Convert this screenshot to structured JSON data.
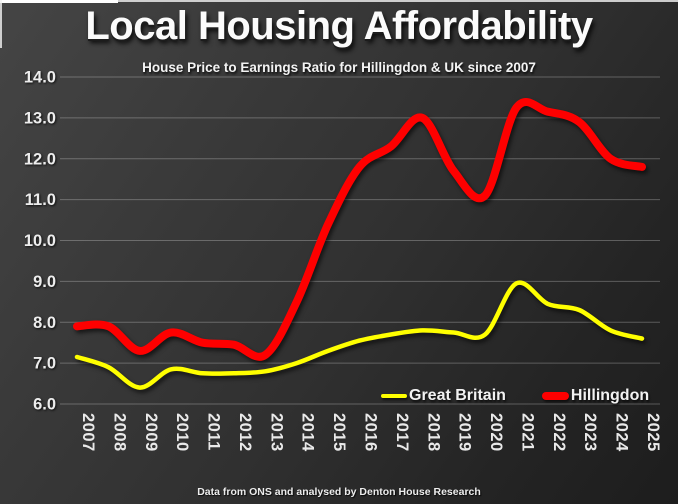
{
  "title": "Local Housing Affordability",
  "subtitle": "House Price to Earnings Ratio for Hillingdon & UK since 2007",
  "footer": "Data from ONS and analysed by Denton House Research",
  "legend": [
    {
      "label": "Great Britain",
      "color": "#ffff00"
    },
    {
      "label": "Hillingdon",
      "color": "#fe0000"
    }
  ],
  "chart_data": {
    "type": "line",
    "title": "Local Housing Affordability",
    "subtitle": "House Price to Earnings Ratio for Hillingdon & UK since 2007",
    "categories": [
      "2007",
      "2008",
      "2009",
      "2010",
      "2011",
      "2012",
      "2013",
      "2014",
      "2015",
      "2016",
      "2017",
      "2018",
      "2019",
      "2020",
      "2021",
      "2022",
      "2023",
      "2024",
      "2025"
    ],
    "series": [
      {
        "name": "Great Britain",
        "color": "#ffff00",
        "values": [
          7.15,
          6.9,
          6.4,
          6.85,
          6.75,
          6.75,
          6.8,
          7.0,
          7.3,
          7.55,
          7.7,
          7.8,
          7.75,
          7.7,
          8.95,
          8.45,
          8.3,
          7.8,
          7.6
        ]
      },
      {
        "name": "Hillingdon",
        "color": "#fe0000",
        "values": [
          7.9,
          7.9,
          7.3,
          7.75,
          7.5,
          7.45,
          7.2,
          8.5,
          10.4,
          11.8,
          12.3,
          13.0,
          11.7,
          11.1,
          13.25,
          13.15,
          12.9,
          12.0,
          11.8
        ]
      }
    ],
    "ylim": [
      6.0,
      14.0
    ],
    "y_ticks": [
      "14.0",
      "13.0",
      "12.0",
      "11.0",
      "10.0",
      "9.0",
      "8.0",
      "7.0",
      "6.0"
    ],
    "grid": true,
    "smooth": true,
    "legend_position": "inside-bottom-right",
    "x_label_rotation_deg": 90
  }
}
